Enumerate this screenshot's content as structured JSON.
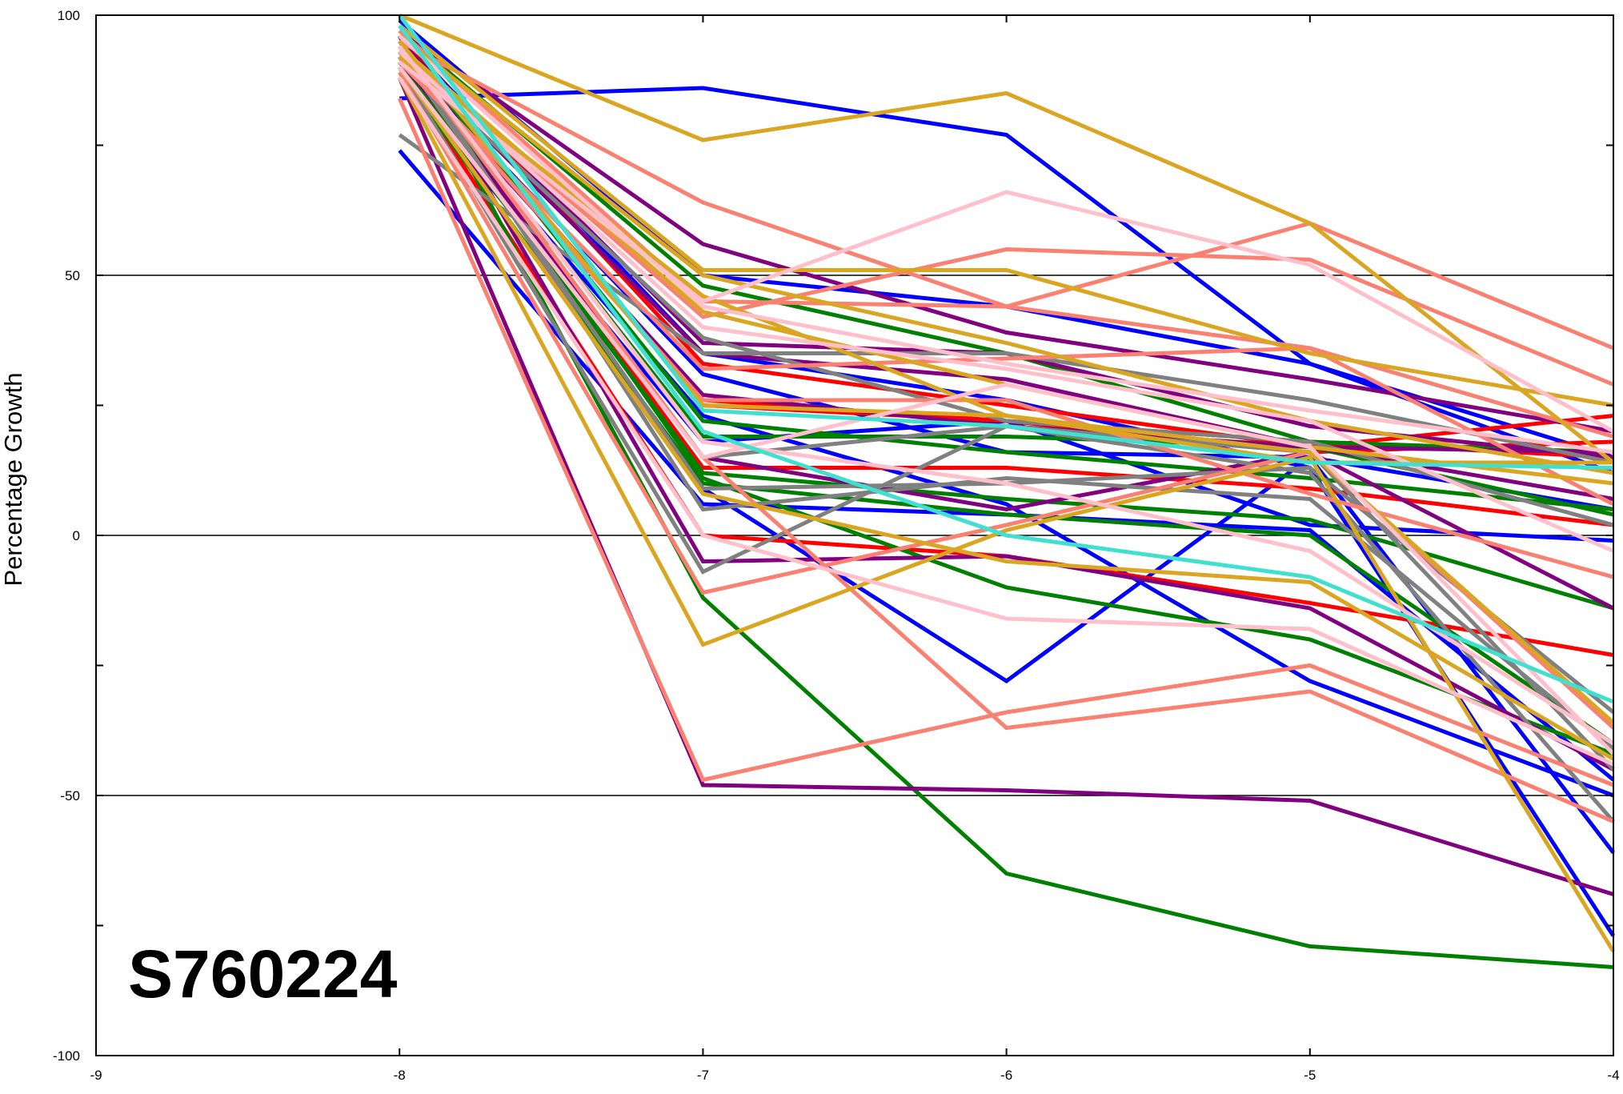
{
  "chart_data": {
    "type": "line",
    "title": "",
    "xlabel": "",
    "ylabel": "Percentage Growth",
    "annotation": "S760224",
    "xlim": [
      -9,
      -4
    ],
    "ylim": [
      -100,
      100
    ],
    "x_ticks": [
      -9,
      -8,
      -7,
      -6,
      -5,
      -4
    ],
    "y_tick_labels": [
      100,
      50,
      0,
      -50,
      -100
    ],
    "y_minor_ticks": [
      75,
      25,
      -25,
      -75
    ],
    "gridlines_y": [
      50,
      0,
      -50
    ],
    "x": [
      -8,
      -7,
      -6,
      -5,
      -4
    ],
    "series": [
      {
        "color": "#0000ff",
        "values": [
          84,
          86,
          77,
          33,
          15
        ]
      },
      {
        "color": "#0000ff",
        "values": [
          99,
          50,
          44,
          33,
          12
        ]
      },
      {
        "color": "#0000ff",
        "values": [
          92,
          31,
          16,
          15,
          5
        ]
      },
      {
        "color": "#0000ff",
        "values": [
          88,
          18,
          22,
          2,
          -1
        ]
      },
      {
        "color": "#0000ff",
        "values": [
          74,
          6,
          4,
          1,
          -47
        ]
      },
      {
        "color": "#0000ff",
        "values": [
          90,
          23,
          6,
          -28,
          -50
        ]
      },
      {
        "color": "#0000ff",
        "values": [
          93,
          9,
          -28,
          15,
          -61
        ]
      },
      {
        "color": "#0000ff",
        "values": [
          96,
          35,
          26,
          13,
          -77
        ]
      },
      {
        "color": "#ff0000",
        "values": [
          96,
          33,
          25,
          17,
          23
        ]
      },
      {
        "color": "#ff0000",
        "values": [
          94,
          26,
          22,
          16,
          18
        ]
      },
      {
        "color": "#ff0000",
        "values": [
          92,
          13,
          13,
          9,
          2
        ]
      },
      {
        "color": "#ff0000",
        "values": [
          90,
          0,
          -4,
          -13,
          -23
        ]
      },
      {
        "color": "#ff0000",
        "values": [
          95,
          25,
          22,
          18,
          15
        ]
      },
      {
        "color": "#008000",
        "values": [
          97,
          48,
          35,
          18,
          16
        ]
      },
      {
        "color": "#008000",
        "values": [
          95,
          22,
          16,
          11,
          5
        ]
      },
      {
        "color": "#008000",
        "values": [
          93,
          19,
          19,
          17,
          4
        ]
      },
      {
        "color": "#008000",
        "values": [
          91,
          12,
          7,
          3,
          -14
        ]
      },
      {
        "color": "#008000",
        "values": [
          89,
          10,
          4,
          0,
          -40
        ]
      },
      {
        "color": "#008000",
        "values": [
          94,
          11,
          -10,
          -20,
          -42
        ]
      },
      {
        "color": "#008000",
        "values": [
          96,
          -12,
          -65,
          -79,
          -83
        ]
      },
      {
        "color": "#800080",
        "values": [
          97,
          56,
          39,
          30,
          20
        ]
      },
      {
        "color": "#800080",
        "values": [
          95,
          37,
          35,
          21,
          15
        ]
      },
      {
        "color": "#800080",
        "values": [
          93,
          35,
          30,
          17,
          7
        ]
      },
      {
        "color": "#800080",
        "values": [
          91,
          27,
          21,
          17,
          16
        ]
      },
      {
        "color": "#800080",
        "values": [
          92,
          15,
          5,
          16,
          -14
        ]
      },
      {
        "color": "#800080",
        "values": [
          96,
          -5,
          -4,
          -14,
          -45
        ]
      },
      {
        "color": "#800080",
        "values": [
          88,
          -48,
          -49,
          -51,
          -69
        ]
      },
      {
        "color": "#808080",
        "values": [
          77,
          35,
          35,
          26,
          14
        ]
      },
      {
        "color": "#808080",
        "values": [
          92,
          38,
          22,
          18,
          2
        ]
      },
      {
        "color": "#808080",
        "values": [
          95,
          5,
          11,
          7,
          -41
        ]
      },
      {
        "color": "#808080",
        "values": [
          93,
          9,
          10,
          13,
          -34
        ]
      },
      {
        "color": "#808080",
        "values": [
          90,
          -7,
          21,
          12,
          -55
        ]
      },
      {
        "color": "#808080",
        "values": [
          94,
          15,
          21,
          16,
          -45
        ]
      },
      {
        "color": "#fa8072",
        "values": [
          95,
          64,
          44,
          60,
          36
        ]
      },
      {
        "color": "#fa8072",
        "values": [
          93,
          42,
          55,
          53,
          29
        ]
      },
      {
        "color": "#fa8072",
        "values": [
          97,
          45,
          44,
          36,
          19
        ]
      },
      {
        "color": "#fa8072",
        "values": [
          91,
          32,
          34,
          36,
          6
        ]
      },
      {
        "color": "#fa8072",
        "values": [
          92,
          26,
          26,
          8,
          -8
        ]
      },
      {
        "color": "#fa8072",
        "values": [
          89,
          -11,
          2,
          16,
          -37
        ]
      },
      {
        "color": "#fa8072",
        "values": [
          84,
          -47,
          -34,
          -25,
          -48
        ]
      },
      {
        "color": "#fa8072",
        "values": [
          94,
          15,
          -37,
          -30,
          -55
        ]
      },
      {
        "color": "#daa520",
        "values": [
          100,
          76,
          85,
          60,
          14
        ]
      },
      {
        "color": "#daa520",
        "values": [
          98,
          51,
          51,
          35,
          25
        ]
      },
      {
        "color": "#daa520",
        "values": [
          96,
          50,
          37,
          22,
          12
        ]
      },
      {
        "color": "#daa520",
        "values": [
          94,
          43,
          29,
          17,
          10
        ]
      },
      {
        "color": "#daa520",
        "values": [
          92,
          46,
          23,
          14,
          14
        ]
      },
      {
        "color": "#daa520",
        "values": [
          90,
          8,
          -5,
          -9,
          -43
        ]
      },
      {
        "color": "#daa520",
        "values": [
          88,
          -21,
          1,
          15,
          -80
        ]
      },
      {
        "color": "#daa520",
        "values": [
          95,
          25,
          23,
          16,
          -36
        ]
      },
      {
        "color": "#ffc0cb",
        "values": [
          91,
          45,
          66,
          52,
          20
        ]
      },
      {
        "color": "#ffc0cb",
        "values": [
          96,
          44,
          33,
          24,
          16
        ]
      },
      {
        "color": "#ffc0cb",
        "values": [
          93,
          40,
          32,
          22,
          -3
        ]
      },
      {
        "color": "#ffc0cb",
        "values": [
          90,
          15,
          29,
          17,
          -42
        ]
      },
      {
        "color": "#ffc0cb",
        "values": [
          88,
          0,
          -16,
          -18,
          -44
        ]
      },
      {
        "color": "#ffc0cb",
        "values": [
          94,
          18,
          10,
          -3,
          -40
        ]
      },
      {
        "color": "#40e0d0",
        "values": [
          100,
          24,
          21,
          14,
          13
        ]
      },
      {
        "color": "#40e0d0",
        "values": [
          98,
          20,
          0,
          -8,
          -32
        ]
      }
    ]
  }
}
